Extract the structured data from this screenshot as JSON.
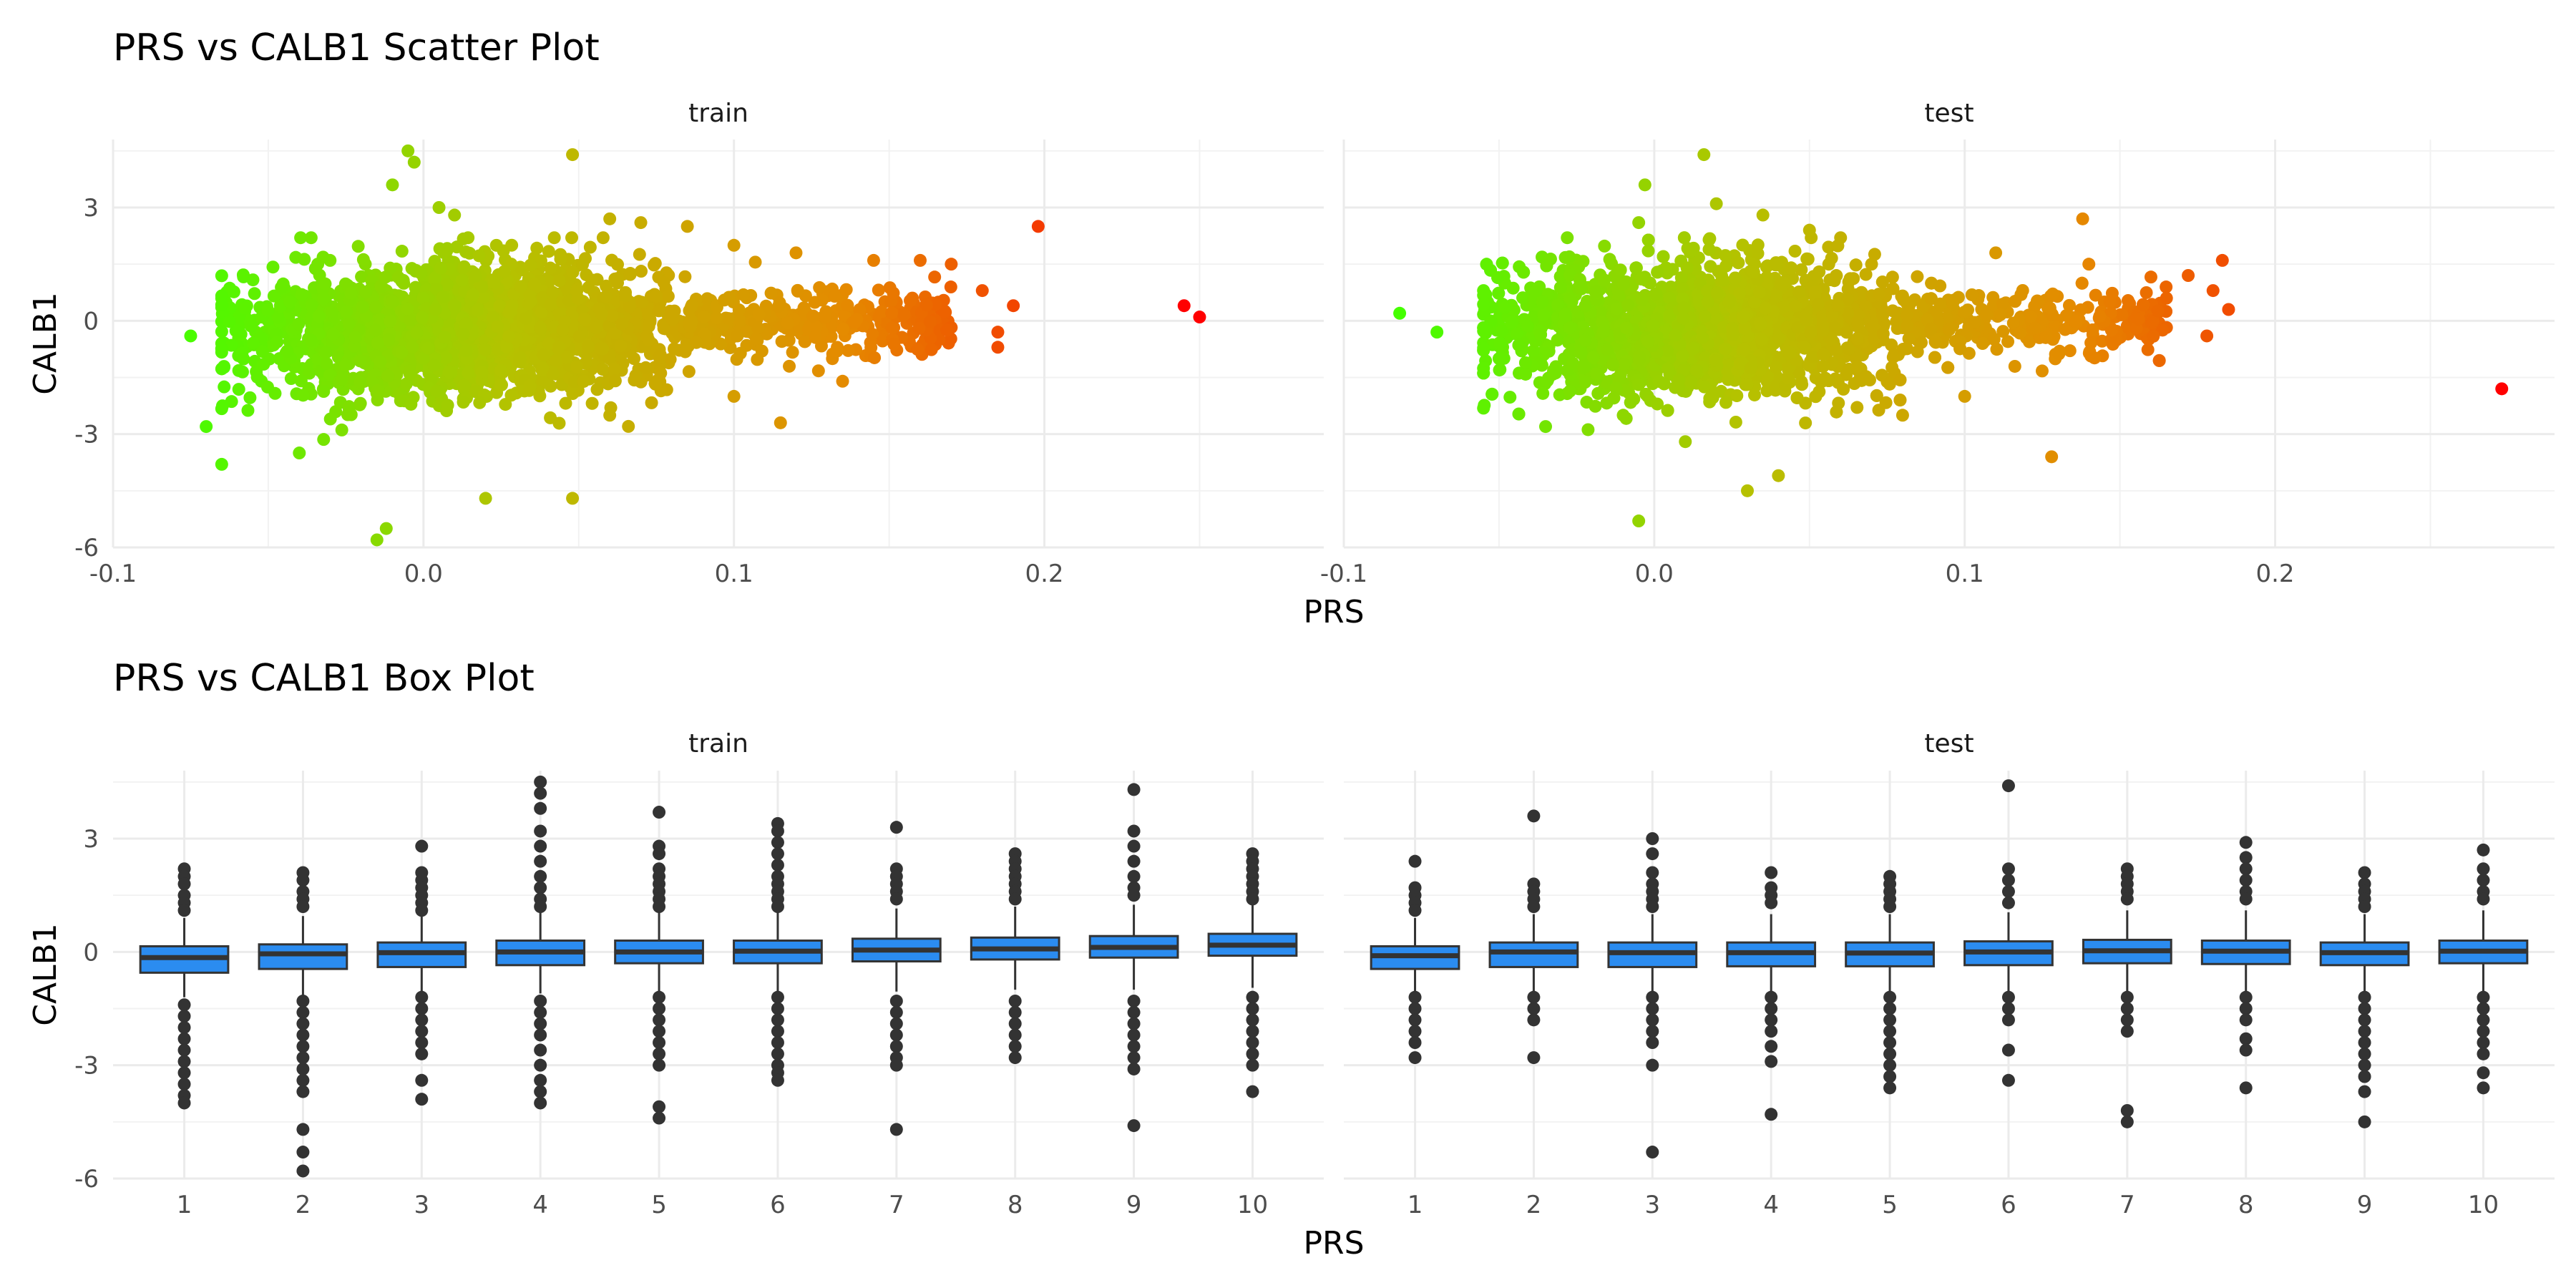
{
  "figure": {
    "scatter_title": "PRS vs CALB1 Scatter Plot",
    "box_title": "PRS vs CALB1 Box Plot",
    "x_label": "PRS",
    "y_label": "CALB1",
    "panels": [
      "train",
      "test"
    ]
  },
  "chart_data": [
    {
      "type": "scatter",
      "title": "PRS vs CALB1 Scatter Plot",
      "xlabel": "PRS",
      "ylabel": "CALB1",
      "xlim": [
        -0.1,
        0.29
      ],
      "ylim": [
        -6.0,
        4.8
      ],
      "x_ticks": [
        -0.1,
        0.0,
        0.1,
        0.2
      ],
      "x_tick_labels": [
        "-0.1",
        "0.0",
        "0.1",
        "0.2"
      ],
      "y_ticks": [
        -6,
        -3,
        0,
        3
      ],
      "y_tick_labels": [
        "-6",
        "-3",
        "0",
        "3"
      ],
      "grid": true,
      "color_gradient": [
        "#44ff00",
        "#b5c200",
        "#e58a00",
        "#ff0000"
      ],
      "color_by": "PRS",
      "panels": [
        {
          "name": "train",
          "cloud": {
            "x_min": -0.065,
            "x_max": 0.17,
            "x_center": 0.01,
            "y_sd": 0.85
          },
          "points": [
            [
              -0.075,
              -0.4
            ],
            [
              -0.07,
              -2.8
            ],
            [
              -0.065,
              -3.8
            ],
            [
              -0.04,
              -3.5
            ],
            [
              -0.03,
              -2.6
            ],
            [
              -0.015,
              -5.8
            ],
            [
              -0.012,
              -5.5
            ],
            [
              -0.005,
              4.5
            ],
            [
              -0.003,
              4.2
            ],
            [
              -0.01,
              3.6
            ],
            [
              0.005,
              3.0
            ],
            [
              0.01,
              2.8
            ],
            [
              0.02,
              -4.7
            ],
            [
              0.048,
              4.4
            ],
            [
              0.048,
              -4.7
            ],
            [
              0.06,
              2.7
            ],
            [
              0.06,
              -2.5
            ],
            [
              0.07,
              2.6
            ],
            [
              0.085,
              2.5
            ],
            [
              0.1,
              -2.0
            ],
            [
              0.1,
              2.0
            ],
            [
              0.115,
              -2.7
            ],
            [
              0.12,
              1.8
            ],
            [
              0.135,
              -1.6
            ],
            [
              0.145,
              1.6
            ],
            [
              0.16,
              1.6
            ],
            [
              0.17,
              1.5
            ],
            [
              0.18,
              0.8
            ],
            [
              0.185,
              -0.3
            ],
            [
              0.185,
              -0.7
            ],
            [
              0.19,
              0.4
            ],
            [
              0.198,
              2.5
            ],
            [
              0.245,
              0.4
            ],
            [
              0.25,
              0.1
            ]
          ]
        },
        {
          "name": "test",
          "cloud": {
            "x_min": -0.055,
            "x_max": 0.165,
            "x_center": 0.015,
            "y_sd": 0.85
          },
          "points": [
            [
              -0.082,
              0.2
            ],
            [
              -0.07,
              -0.3
            ],
            [
              -0.05,
              -1.0
            ],
            [
              -0.035,
              -2.8
            ],
            [
              -0.01,
              -2.5
            ],
            [
              -0.005,
              -5.3
            ],
            [
              -0.005,
              2.6
            ],
            [
              -0.003,
              3.6
            ],
            [
              0.016,
              4.4
            ],
            [
              0.02,
              3.1
            ],
            [
              0.03,
              -4.5
            ],
            [
              0.035,
              2.8
            ],
            [
              0.04,
              -4.1
            ],
            [
              0.05,
              2.4
            ],
            [
              0.07,
              1.5
            ],
            [
              0.08,
              -2.5
            ],
            [
              0.1,
              -2.0
            ],
            [
              0.11,
              1.8
            ],
            [
              0.128,
              -3.6
            ],
            [
              0.138,
              2.7
            ],
            [
              0.14,
              1.5
            ],
            [
              0.165,
              0.6
            ],
            [
              0.172,
              1.2
            ],
            [
              0.178,
              -0.4
            ],
            [
              0.18,
              0.8
            ],
            [
              0.183,
              1.6
            ],
            [
              0.185,
              0.3
            ],
            [
              0.273,
              -1.8
            ]
          ]
        }
      ]
    },
    {
      "type": "box",
      "title": "PRS vs CALB1 Box Plot",
      "xlabel": "PRS",
      "ylabel": "CALB1",
      "ylim": [
        -6.0,
        4.8
      ],
      "categories": [
        "1",
        "2",
        "3",
        "4",
        "5",
        "6",
        "7",
        "8",
        "9",
        "10"
      ],
      "y_ticks": [
        -6,
        -3,
        0,
        3
      ],
      "y_tick_labels": [
        "-6",
        "-3",
        "0",
        "3"
      ],
      "box_fill": "#2b8cf0",
      "box_stroke": "#333333",
      "outlier_color": "#333333",
      "grid": true,
      "panels": [
        {
          "name": "train",
          "boxes": [
            {
              "q1": -0.55,
              "median": -0.15,
              "q3": 0.15,
              "whisker_low": -1.2,
              "whisker_high": 0.9,
              "outliers": [
                2.2,
                2.0,
                1.8,
                1.5,
                1.3,
                1.1,
                -1.4,
                -1.7,
                -2.0,
                -2.3,
                -2.6,
                -2.9,
                -3.2,
                -3.5,
                -3.8,
                -4.0
              ]
            },
            {
              "q1": -0.45,
              "median": -0.05,
              "q3": 0.2,
              "whisker_low": -1.2,
              "whisker_high": 0.95,
              "outliers": [
                2.1,
                1.9,
                1.6,
                1.4,
                1.2,
                -1.3,
                -1.6,
                -1.9,
                -2.2,
                -2.5,
                -2.8,
                -3.1,
                -3.4,
                -3.7,
                -4.7,
                -5.3,
                -5.8
              ]
            },
            {
              "q1": -0.4,
              "median": -0.02,
              "q3": 0.25,
              "whisker_low": -1.15,
              "whisker_high": 1.0,
              "outliers": [
                2.8,
                2.1,
                1.9,
                1.7,
                1.5,
                1.3,
                1.1,
                -1.2,
                -1.5,
                -1.8,
                -2.1,
                -2.4,
                -2.7,
                -3.4,
                -3.9
              ]
            },
            {
              "q1": -0.35,
              "median": 0.0,
              "q3": 0.3,
              "whisker_low": -1.1,
              "whisker_high": 1.05,
              "outliers": [
                4.5,
                4.2,
                3.8,
                3.2,
                2.8,
                2.4,
                2.0,
                1.7,
                1.4,
                1.2,
                -1.3,
                -1.6,
                -1.9,
                -2.2,
                -2.6,
                -3.0,
                -3.4,
                -3.7,
                -4.0
              ]
            },
            {
              "q1": -0.3,
              "median": 0.0,
              "q3": 0.3,
              "whisker_low": -1.1,
              "whisker_high": 1.1,
              "outliers": [
                3.7,
                2.8,
                2.6,
                2.2,
                2.0,
                1.8,
                1.6,
                1.4,
                1.2,
                -1.2,
                -1.5,
                -1.8,
                -2.1,
                -2.4,
                -2.7,
                -3.0,
                -4.1,
                -4.4
              ]
            },
            {
              "q1": -0.3,
              "median": 0.02,
              "q3": 0.3,
              "whisker_low": -1.1,
              "whisker_high": 1.1,
              "outliers": [
                3.4,
                3.2,
                2.9,
                2.6,
                2.3,
                2.0,
                1.8,
                1.6,
                1.4,
                1.2,
                -1.2,
                -1.5,
                -1.8,
                -2.1,
                -2.4,
                -2.7,
                -3.0,
                -3.2,
                -3.4
              ]
            },
            {
              "q1": -0.25,
              "median": 0.05,
              "q3": 0.35,
              "whisker_low": -1.05,
              "whisker_high": 1.15,
              "outliers": [
                3.3,
                2.2,
                2.0,
                1.8,
                1.6,
                1.4,
                -1.3,
                -1.6,
                -1.9,
                -2.2,
                -2.5,
                -2.8,
                -3.0,
                -4.7
              ]
            },
            {
              "q1": -0.2,
              "median": 0.08,
              "q3": 0.38,
              "whisker_low": -1.0,
              "whisker_high": 1.2,
              "outliers": [
                2.6,
                2.4,
                2.2,
                2.0,
                1.8,
                1.6,
                1.4,
                -1.3,
                -1.6,
                -1.9,
                -2.2,
                -2.5,
                -2.8
              ]
            },
            {
              "q1": -0.15,
              "median": 0.12,
              "q3": 0.42,
              "whisker_low": -1.0,
              "whisker_high": 1.25,
              "outliers": [
                4.3,
                3.2,
                2.8,
                2.4,
                2.0,
                1.7,
                1.5,
                -1.3,
                -1.6,
                -1.9,
                -2.2,
                -2.5,
                -2.8,
                -3.1,
                -4.6
              ]
            },
            {
              "q1": -0.1,
              "median": 0.18,
              "q3": 0.48,
              "whisker_low": -0.95,
              "whisker_high": 1.3,
              "outliers": [
                2.6,
                2.4,
                2.2,
                2.0,
                1.8,
                1.6,
                1.4,
                -1.2,
                -1.5,
                -1.8,
                -2.1,
                -2.4,
                -2.7,
                -3.0,
                -3.7
              ]
            }
          ]
        },
        {
          "name": "test",
          "boxes": [
            {
              "q1": -0.45,
              "median": -0.1,
              "q3": 0.15,
              "whisker_low": -1.1,
              "whisker_high": 0.9,
              "outliers": [
                2.4,
                1.7,
                1.5,
                1.3,
                1.1,
                -1.2,
                -1.5,
                -1.8,
                -2.1,
                -2.4,
                -2.8
              ]
            },
            {
              "q1": -0.4,
              "median": 0.0,
              "q3": 0.25,
              "whisker_low": -1.1,
              "whisker_high": 1.0,
              "outliers": [
                3.6,
                1.8,
                1.6,
                1.4,
                1.2,
                -1.2,
                -1.5,
                -1.8,
                -2.8
              ]
            },
            {
              "q1": -0.4,
              "median": -0.02,
              "q3": 0.25,
              "whisker_low": -1.1,
              "whisker_high": 1.0,
              "outliers": [
                3.0,
                2.6,
                2.1,
                1.8,
                1.6,
                1.4,
                1.2,
                -1.2,
                -1.5,
                -1.8,
                -2.1,
                -2.4,
                -3.0,
                -5.3
              ]
            },
            {
              "q1": -0.38,
              "median": -0.02,
              "q3": 0.25,
              "whisker_low": -1.1,
              "whisker_high": 1.0,
              "outliers": [
                2.1,
                1.7,
                1.5,
                1.3,
                -1.2,
                -1.5,
                -1.8,
                -2.1,
                -2.5,
                -2.9,
                -4.3
              ]
            },
            {
              "q1": -0.38,
              "median": -0.03,
              "q3": 0.25,
              "whisker_low": -1.1,
              "whisker_high": 1.0,
              "outliers": [
                2.0,
                1.8,
                1.6,
                1.4,
                1.2,
                -1.2,
                -1.5,
                -1.8,
                -2.1,
                -2.4,
                -2.7,
                -3.0,
                -3.3,
                -3.6
              ]
            },
            {
              "q1": -0.35,
              "median": 0.0,
              "q3": 0.28,
              "whisker_low": -1.05,
              "whisker_high": 1.05,
              "outliers": [
                4.4,
                2.2,
                1.9,
                1.6,
                1.3,
                -1.2,
                -1.5,
                -1.8,
                -2.6,
                -3.4
              ]
            },
            {
              "q1": -0.3,
              "median": 0.03,
              "q3": 0.32,
              "whisker_low": -1.05,
              "whisker_high": 1.1,
              "outliers": [
                2.2,
                2.0,
                1.8,
                1.6,
                1.4,
                -1.2,
                -1.5,
                -1.8,
                -2.1,
                -4.2,
                -4.5
              ]
            },
            {
              "q1": -0.32,
              "median": 0.02,
              "q3": 0.3,
              "whisker_low": -1.05,
              "whisker_high": 1.1,
              "outliers": [
                2.9,
                2.5,
                2.2,
                1.9,
                1.6,
                1.4,
                -1.2,
                -1.5,
                -1.8,
                -2.3,
                -2.6,
                -3.6
              ]
            },
            {
              "q1": -0.35,
              "median": -0.02,
              "q3": 0.25,
              "whisker_low": -1.1,
              "whisker_high": 1.0,
              "outliers": [
                2.1,
                1.8,
                1.6,
                1.4,
                1.2,
                -1.2,
                -1.5,
                -1.8,
                -2.1,
                -2.4,
                -2.7,
                -3.0,
                -3.3,
                -3.7,
                -4.5
              ]
            },
            {
              "q1": -0.3,
              "median": 0.02,
              "q3": 0.3,
              "whisker_low": -1.05,
              "whisker_high": 1.1,
              "outliers": [
                2.7,
                2.2,
                1.9,
                1.6,
                1.4,
                -1.2,
                -1.5,
                -1.8,
                -2.1,
                -2.4,
                -2.7,
                -3.2,
                -3.6
              ]
            }
          ]
        }
      ]
    }
  ]
}
